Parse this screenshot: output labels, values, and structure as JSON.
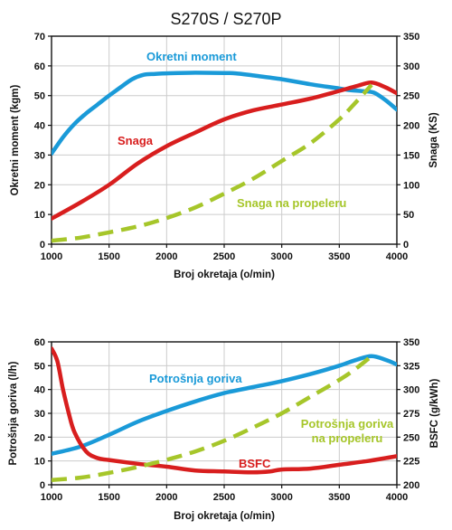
{
  "title": "S270S / S270P",
  "colors": {
    "blue": "#1a9ad8",
    "red": "#d81e1e",
    "green": "#a6c62a",
    "grid": "#cccccc",
    "axis": "#111111"
  },
  "chart_data": [
    {
      "type": "line",
      "xlabel": "Broj okretaja (o/min)",
      "ylabel": "Okretni moment (kgm)",
      "y2label": "Snaga (KS)",
      "xlim": [
        1000,
        4000
      ],
      "xticks": [
        1000,
        1500,
        2000,
        2500,
        3000,
        3500,
        4000
      ],
      "ylim": [
        0,
        70
      ],
      "yticks": [
        0,
        10,
        20,
        30,
        40,
        50,
        60,
        70
      ],
      "y2lim": [
        0,
        350
      ],
      "y2ticks": [
        0,
        50,
        100,
        150,
        200,
        250,
        300,
        350
      ],
      "grid": true,
      "series": [
        {
          "name": "Okretni moment",
          "axis": "left",
          "color": "blue",
          "dash": "solid",
          "x": [
            1000,
            1100,
            1200,
            1300,
            1400,
            1500,
            1600,
            1700,
            1800,
            1900,
            2000,
            2250,
            2500,
            2600,
            2750,
            3000,
            3250,
            3500,
            3600,
            3700,
            3800,
            3900,
            4000
          ],
          "y": [
            30.5,
            36,
            40.5,
            44,
            47,
            50,
            52.8,
            55.5,
            57,
            57.3,
            57.5,
            57.7,
            57.6,
            57.5,
            56.8,
            55.5,
            53.8,
            52.4,
            51.8,
            51.5,
            51,
            48.5,
            45.3
          ]
        },
        {
          "name": "Snaga",
          "axis": "right",
          "color": "red",
          "dash": "solid",
          "x": [
            1000,
            1250,
            1500,
            1750,
            2000,
            2250,
            2500,
            2750,
            3000,
            3250,
            3500,
            3650,
            3780,
            3900,
            4000
          ],
          "y": [
            43,
            70,
            100,
            136,
            165,
            188,
            210,
            225,
            235,
            245,
            258,
            266,
            272,
            264,
            254
          ]
        },
        {
          "name": "Snaga na propeleru",
          "axis": "right",
          "color": "green",
          "dash": "dashed",
          "x": [
            1000,
            1250,
            1500,
            1750,
            2000,
            2250,
            2500,
            2750,
            3000,
            3250,
            3500,
            3650,
            3780
          ],
          "y": [
            6,
            11,
            20,
            30,
            44,
            62,
            85,
            110,
            140,
            170,
            210,
            240,
            268
          ]
        }
      ],
      "annotations": [
        {
          "text": "Okretni moment",
          "series": "Okretni moment"
        },
        {
          "text": "Snaga",
          "series": "Snaga"
        },
        {
          "text": "Snaga na propeleru",
          "series": "Snaga na propeleru"
        }
      ]
    },
    {
      "type": "line",
      "xlabel": "Broj okretaja (o/min)",
      "ylabel": "Potrošnja goriva (l/h)",
      "y2label": "BSFC (g/kWh)",
      "xlim": [
        1000,
        4000
      ],
      "xticks": [
        1000,
        1500,
        2000,
        2500,
        3000,
        3500,
        4000
      ],
      "ylim": [
        0,
        60
      ],
      "yticks": [
        0,
        10,
        20,
        30,
        40,
        50,
        60
      ],
      "y2lim": [
        200,
        350
      ],
      "y2ticks": [
        200,
        225,
        250,
        275,
        300,
        325,
        350
      ],
      "grid": true,
      "series": [
        {
          "name": "Potrošnja goriva",
          "axis": "left",
          "color": "blue",
          "dash": "solid",
          "x": [
            1000,
            1250,
            1500,
            1750,
            2000,
            2250,
            2500,
            2750,
            3000,
            3250,
            3500,
            3650,
            3780,
            3900,
            4000
          ],
          "y": [
            13,
            16,
            21,
            26.5,
            31,
            35,
            38.5,
            41,
            43.5,
            46.5,
            50,
            52.5,
            54,
            52.5,
            50.5
          ]
        },
        {
          "name": "BSFC",
          "axis": "right",
          "color": "red",
          "dash": "solid",
          "x": [
            1000,
            1050,
            1100,
            1150,
            1200,
            1300,
            1400,
            1500,
            1750,
            2000,
            2250,
            2500,
            2750,
            2900,
            3000,
            3250,
            3500,
            3750,
            4000
          ],
          "y": [
            343,
            330,
            300,
            275,
            255,
            235,
            228,
            226,
            222,
            219,
            215,
            214,
            213,
            214,
            216,
            217,
            221,
            225,
            230
          ]
        },
        {
          "name": "Potrošnja goriva na propeleru",
          "axis": "left",
          "color": "green",
          "dash": "dashed",
          "x": [
            1000,
            1250,
            1500,
            1750,
            2000,
            2250,
            2500,
            2750,
            3000,
            3250,
            3500,
            3650,
            3780
          ],
          "y": [
            2,
            3,
            5,
            7.5,
            10.5,
            14,
            18.5,
            24,
            30,
            37,
            44,
            49,
            54
          ]
        }
      ],
      "annotations": [
        {
          "text": "Potrošnja goriva",
          "series": "Potrošnja goriva"
        },
        {
          "text": "BSFC",
          "series": "BSFC"
        },
        {
          "text": "Potrošnja goriva",
          "series": "Potrošnja goriva na propeleru"
        },
        {
          "text": "na propeleru",
          "series": "Potrošnja goriva na propeleru"
        }
      ]
    }
  ]
}
